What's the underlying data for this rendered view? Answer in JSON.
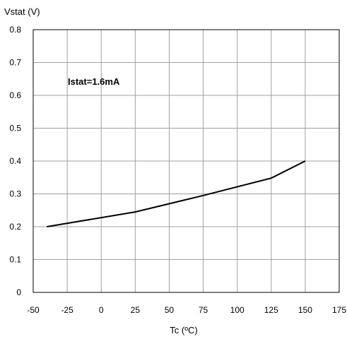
{
  "chart_data": {
    "type": "line",
    "title": "",
    "ylabel": "Vstat (V)",
    "xlabel": "Tc (ºC)",
    "xlim": [
      -50,
      175
    ],
    "ylim": [
      0,
      0.8
    ],
    "x_ticks": [
      -50,
      -25,
      0,
      25,
      50,
      75,
      100,
      125,
      150,
      175
    ],
    "x_tick_labels": [
      "-50",
      "-25",
      "0",
      "25",
      "50",
      "75",
      "100",
      "125",
      "150",
      "175"
    ],
    "y_ticks": [
      0,
      0.1,
      0.2,
      0.3,
      0.4,
      0.5,
      0.6,
      0.7,
      0.8
    ],
    "y_tick_labels": [
      "0",
      "0.1",
      "0.2",
      "0.3",
      "0.4",
      "0.5",
      "0.6",
      "0.7",
      "0.8"
    ],
    "grid": true,
    "annotation": "Istat=1.6mA",
    "series": [
      {
        "x": [
          -40,
          25,
          75,
          125,
          150
        ],
        "y": [
          0.2,
          0.245,
          0.295,
          0.348,
          0.4
        ]
      }
    ],
    "colors": {
      "line": "#000000",
      "grid": "#a0a0a0",
      "axis": "#000000"
    }
  }
}
